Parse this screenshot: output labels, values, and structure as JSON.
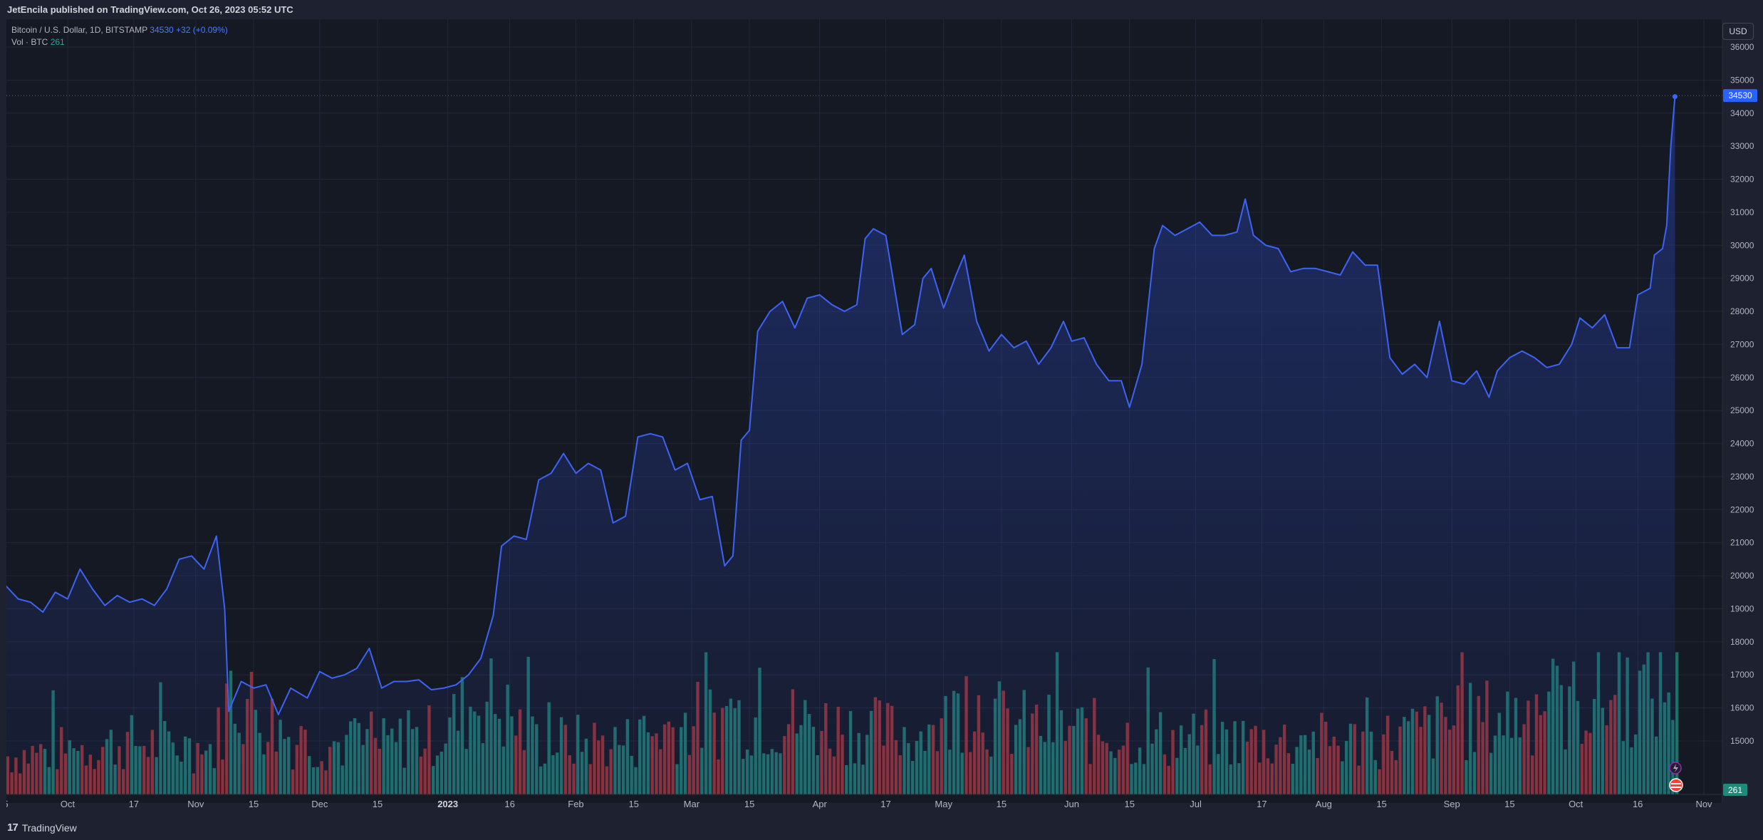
{
  "header": {
    "published": "JetEncila published on TradingView.com, Oct 26, 2023 05:52 UTC"
  },
  "legend": {
    "symbol": "Bitcoin / U.S. Dollar, 1D, BITSTAMP",
    "last": "34530",
    "change": "+32 (+0.09%)",
    "vol_label": "Vol · BTC",
    "vol_value": "261"
  },
  "footer": {
    "brand": "TradingView"
  },
  "axis": {
    "currency": "USD"
  },
  "colors": {
    "line": "#3d63f5",
    "vol_up": "#1f6f67",
    "vol_down": "#8e3035",
    "background": "#151924"
  },
  "chart_data": {
    "type": "area",
    "title": "Bitcoin / U.S. Dollar, 1D, BITSTAMP",
    "ylabel": "USD",
    "ylim": [
      14100,
      36500
    ],
    "y_ticks": [
      15000,
      16000,
      17000,
      18000,
      19000,
      20000,
      21000,
      22000,
      23000,
      24000,
      25000,
      26000,
      27000,
      28000,
      29000,
      30000,
      31000,
      32000,
      33000,
      34000,
      35000,
      36000
    ],
    "y_tick_labels": [
      "15000",
      "16000",
      "17000",
      "18000",
      "19000",
      "20000",
      "21000",
      "22000",
      "23000",
      "24000",
      "25000",
      "26000",
      "27000",
      "28000",
      "29000",
      "30000",
      "31000",
      "32000",
      "33000",
      "34000",
      "35000",
      "36000"
    ],
    "x_start": "2022-09-16",
    "x_end": "2023-11-01",
    "x_ticks": [
      {
        "date": "2022-09-16",
        "label": "5"
      },
      {
        "date": "2022-10-01",
        "label": "Oct"
      },
      {
        "date": "2022-10-17",
        "label": "17"
      },
      {
        "date": "2022-11-01",
        "label": "Nov"
      },
      {
        "date": "2022-11-15",
        "label": "15"
      },
      {
        "date": "2022-12-01",
        "label": "Dec"
      },
      {
        "date": "2022-12-15",
        "label": "15"
      },
      {
        "date": "2023-01-01",
        "label": "2023",
        "bold": true
      },
      {
        "date": "2023-01-16",
        "label": "16"
      },
      {
        "date": "2023-02-01",
        "label": "Feb"
      },
      {
        "date": "2023-02-15",
        "label": "15"
      },
      {
        "date": "2023-03-01",
        "label": "Mar"
      },
      {
        "date": "2023-03-15",
        "label": "15"
      },
      {
        "date": "2023-04-01",
        "label": "Apr"
      },
      {
        "date": "2023-04-17",
        "label": "17"
      },
      {
        "date": "2023-05-01",
        "label": "May"
      },
      {
        "date": "2023-05-15",
        "label": "15"
      },
      {
        "date": "2023-06-01",
        "label": "Jun"
      },
      {
        "date": "2023-06-15",
        "label": "15"
      },
      {
        "date": "2023-07-01",
        "label": "Jul"
      },
      {
        "date": "2023-07-17",
        "label": "17"
      },
      {
        "date": "2023-08-01",
        "label": "Aug"
      },
      {
        "date": "2023-08-15",
        "label": "15"
      },
      {
        "date": "2023-09-01",
        "label": "Sep"
      },
      {
        "date": "2023-09-15",
        "label": "15"
      },
      {
        "date": "2023-10-01",
        "label": "Oct"
      },
      {
        "date": "2023-10-16",
        "label": "16"
      },
      {
        "date": "2023-11-01",
        "label": "Nov"
      }
    ],
    "series": [
      {
        "name": "Bitcoin / U.S. Dollar",
        "points": [
          [
            "2022-09-16",
            19700
          ],
          [
            "2022-09-19",
            19300
          ],
          [
            "2022-09-22",
            19200
          ],
          [
            "2022-09-25",
            18900
          ],
          [
            "2022-09-28",
            19500
          ],
          [
            "2022-10-01",
            19300
          ],
          [
            "2022-10-04",
            20200
          ],
          [
            "2022-10-07",
            19600
          ],
          [
            "2022-10-10",
            19100
          ],
          [
            "2022-10-13",
            19400
          ],
          [
            "2022-10-16",
            19200
          ],
          [
            "2022-10-19",
            19300
          ],
          [
            "2022-10-22",
            19100
          ],
          [
            "2022-10-25",
            19600
          ],
          [
            "2022-10-28",
            20500
          ],
          [
            "2022-10-31",
            20600
          ],
          [
            "2022-11-03",
            20200
          ],
          [
            "2022-11-06",
            21200
          ],
          [
            "2022-11-08",
            19000
          ],
          [
            "2022-11-09",
            15900
          ],
          [
            "2022-11-12",
            16800
          ],
          [
            "2022-11-15",
            16600
          ],
          [
            "2022-11-18",
            16700
          ],
          [
            "2022-11-21",
            15800
          ],
          [
            "2022-11-24",
            16600
          ],
          [
            "2022-11-28",
            16300
          ],
          [
            "2022-12-01",
            17100
          ],
          [
            "2022-12-04",
            16900
          ],
          [
            "2022-12-07",
            17000
          ],
          [
            "2022-12-10",
            17200
          ],
          [
            "2022-12-13",
            17800
          ],
          [
            "2022-12-16",
            16600
          ],
          [
            "2022-12-19",
            16800
          ],
          [
            "2022-12-22",
            16800
          ],
          [
            "2022-12-25",
            16850
          ],
          [
            "2022-12-28",
            16550
          ],
          [
            "2022-12-31",
            16600
          ],
          [
            "2023-01-03",
            16700
          ],
          [
            "2023-01-06",
            17000
          ],
          [
            "2023-01-09",
            17500
          ],
          [
            "2023-01-12",
            18800
          ],
          [
            "2023-01-14",
            20900
          ],
          [
            "2023-01-17",
            21200
          ],
          [
            "2023-01-20",
            21100
          ],
          [
            "2023-01-23",
            22900
          ],
          [
            "2023-01-26",
            23100
          ],
          [
            "2023-01-29",
            23700
          ],
          [
            "2023-02-01",
            23100
          ],
          [
            "2023-02-04",
            23400
          ],
          [
            "2023-02-07",
            23200
          ],
          [
            "2023-02-10",
            21600
          ],
          [
            "2023-02-13",
            21800
          ],
          [
            "2023-02-16",
            24200
          ],
          [
            "2023-02-19",
            24300
          ],
          [
            "2023-02-22",
            24200
          ],
          [
            "2023-02-25",
            23200
          ],
          [
            "2023-02-28",
            23400
          ],
          [
            "2023-03-03",
            22300
          ],
          [
            "2023-03-06",
            22400
          ],
          [
            "2023-03-09",
            20300
          ],
          [
            "2023-03-11",
            20600
          ],
          [
            "2023-03-13",
            24100
          ],
          [
            "2023-03-15",
            24400
          ],
          [
            "2023-03-17",
            27400
          ],
          [
            "2023-03-20",
            28000
          ],
          [
            "2023-03-23",
            28300
          ],
          [
            "2023-03-26",
            27500
          ],
          [
            "2023-03-29",
            28400
          ],
          [
            "2023-04-01",
            28500
          ],
          [
            "2023-04-04",
            28200
          ],
          [
            "2023-04-07",
            28000
          ],
          [
            "2023-04-10",
            28200
          ],
          [
            "2023-04-12",
            30200
          ],
          [
            "2023-04-14",
            30500
          ],
          [
            "2023-04-17",
            30300
          ],
          [
            "2023-04-19",
            28800
          ],
          [
            "2023-04-21",
            27300
          ],
          [
            "2023-04-24",
            27600
          ],
          [
            "2023-04-26",
            29000
          ],
          [
            "2023-04-28",
            29300
          ],
          [
            "2023-05-01",
            28100
          ],
          [
            "2023-05-04",
            29100
          ],
          [
            "2023-05-06",
            29700
          ],
          [
            "2023-05-09",
            27700
          ],
          [
            "2023-05-12",
            26800
          ],
          [
            "2023-05-15",
            27300
          ],
          [
            "2023-05-18",
            26900
          ],
          [
            "2023-05-21",
            27100
          ],
          [
            "2023-05-24",
            26400
          ],
          [
            "2023-05-27",
            26900
          ],
          [
            "2023-05-30",
            27700
          ],
          [
            "2023-06-01",
            27100
          ],
          [
            "2023-06-04",
            27200
          ],
          [
            "2023-06-07",
            26400
          ],
          [
            "2023-06-10",
            25900
          ],
          [
            "2023-06-13",
            25900
          ],
          [
            "2023-06-15",
            25100
          ],
          [
            "2023-06-18",
            26400
          ],
          [
            "2023-06-21",
            29900
          ],
          [
            "2023-06-23",
            30600
          ],
          [
            "2023-06-26",
            30300
          ],
          [
            "2023-06-29",
            30500
          ],
          [
            "2023-07-02",
            30700
          ],
          [
            "2023-07-05",
            30300
          ],
          [
            "2023-07-08",
            30300
          ],
          [
            "2023-07-11",
            30400
          ],
          [
            "2023-07-13",
            31400
          ],
          [
            "2023-07-15",
            30300
          ],
          [
            "2023-07-18",
            30000
          ],
          [
            "2023-07-21",
            29900
          ],
          [
            "2023-07-24",
            29200
          ],
          [
            "2023-07-27",
            29300
          ],
          [
            "2023-07-30",
            29300
          ],
          [
            "2023-08-02",
            29200
          ],
          [
            "2023-08-05",
            29100
          ],
          [
            "2023-08-08",
            29800
          ],
          [
            "2023-08-11",
            29400
          ],
          [
            "2023-08-14",
            29400
          ],
          [
            "2023-08-17",
            26600
          ],
          [
            "2023-08-20",
            26100
          ],
          [
            "2023-08-23",
            26400
          ],
          [
            "2023-08-26",
            26000
          ],
          [
            "2023-08-29",
            27700
          ],
          [
            "2023-09-01",
            25900
          ],
          [
            "2023-09-04",
            25800
          ],
          [
            "2023-09-07",
            26200
          ],
          [
            "2023-09-10",
            25400
          ],
          [
            "2023-09-12",
            26200
          ],
          [
            "2023-09-15",
            26600
          ],
          [
            "2023-09-18",
            26800
          ],
          [
            "2023-09-21",
            26600
          ],
          [
            "2023-09-24",
            26300
          ],
          [
            "2023-09-27",
            26400
          ],
          [
            "2023-09-30",
            27000
          ],
          [
            "2023-10-02",
            27800
          ],
          [
            "2023-10-05",
            27500
          ],
          [
            "2023-10-08",
            27900
          ],
          [
            "2023-10-11",
            26900
          ],
          [
            "2023-10-14",
            26900
          ],
          [
            "2023-10-16",
            28500
          ],
          [
            "2023-10-19",
            28700
          ],
          [
            "2023-10-20",
            29700
          ],
          [
            "2023-10-22",
            29900
          ],
          [
            "2023-10-23",
            30600
          ],
          [
            "2023-10-24",
            33000
          ],
          [
            "2023-10-25",
            34500
          ]
        ]
      },
      {
        "name": "Vol · BTC",
        "profile": [
          [
            0,
            0.22
          ],
          [
            30,
            0.3
          ],
          [
            50,
            0.26
          ],
          [
            54,
            0.6
          ],
          [
            62,
            0.45
          ],
          [
            70,
            0.3
          ],
          [
            90,
            0.28
          ],
          [
            105,
            0.35
          ],
          [
            115,
            0.58
          ],
          [
            128,
            0.3
          ],
          [
            150,
            0.3
          ],
          [
            165,
            0.42
          ],
          [
            178,
            0.45
          ],
          [
            212,
            0.36
          ],
          [
            225,
            0.35
          ],
          [
            232,
            0.55
          ],
          [
            242,
            0.4
          ],
          [
            280,
            0.32
          ],
          [
            330,
            0.3
          ],
          [
            350,
            0.4
          ],
          [
            404,
            0.62
          ],
          [
            408,
            0.35
          ]
        ],
        "scale_max": 0.62
      }
    ],
    "last_price_marker": {
      "value": 34530,
      "label": "34530"
    },
    "last_volume_marker": {
      "label": "261"
    }
  }
}
